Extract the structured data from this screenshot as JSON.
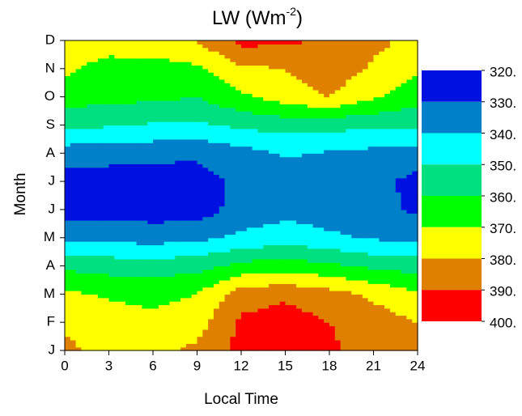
{
  "chart_data": {
    "type": "contour",
    "title": "LW (Wm",
    "title_superscript": "-2",
    "title_end": ")",
    "x_label": "Local Time",
    "y_label": "Month",
    "x": [
      0,
      3,
      6,
      9,
      12,
      15,
      18,
      21,
      24
    ],
    "xlim": [
      0,
      24
    ],
    "xticks": [
      0,
      3,
      6,
      9,
      12,
      15,
      18,
      21,
      24
    ],
    "categories": [
      "J",
      "F",
      "M",
      "A",
      "M",
      "J",
      "J",
      "A",
      "S",
      "O",
      "N",
      "D"
    ],
    "z": [
      [
        383,
        375,
        377,
        382,
        393,
        395,
        392,
        385,
        383
      ],
      [
        378,
        374,
        373,
        376,
        392,
        395,
        390,
        385,
        380
      ],
      [
        372,
        369,
        367,
        370,
        385,
        388,
        384,
        378,
        372
      ],
      [
        358,
        356,
        355,
        357,
        363,
        366,
        362,
        358,
        356
      ],
      [
        338,
        337,
        336,
        338,
        342,
        345,
        342,
        339,
        337
      ],
      [
        325,
        326,
        325,
        325,
        334,
        337,
        335,
        334,
        328
      ],
      [
        326,
        326,
        324,
        325,
        333,
        336,
        335,
        333,
        327
      ],
      [
        335,
        333,
        333,
        332,
        336,
        341,
        339,
        337,
        334
      ],
      [
        352,
        351,
        349,
        348,
        352,
        354,
        353,
        352,
        353
      ],
      [
        365,
        363,
        362,
        360,
        368,
        375,
        380,
        371,
        363
      ],
      [
        372,
        366,
        365,
        368,
        378,
        380,
        386,
        379,
        372
      ],
      [
        375,
        375,
        378,
        380,
        393,
        392,
        388,
        382,
        378
      ]
    ],
    "levels": [
      {
        "value": 320,
        "label": "320."
      },
      {
        "value": 330,
        "label": "330."
      },
      {
        "value": 340,
        "label": "340."
      },
      {
        "value": 350,
        "label": "350."
      },
      {
        "value": 360,
        "label": "360."
      },
      {
        "value": 370,
        "label": "370."
      },
      {
        "value": 380,
        "label": "380."
      },
      {
        "value": 390,
        "label": "390."
      },
      {
        "value": 400,
        "label": "400."
      }
    ],
    "colors": [
      "#0010e0",
      "#0080c8",
      "#00ffff",
      "#00e080",
      "#00ff00",
      "#ffff00",
      "#e08000",
      "#ff0000"
    ]
  }
}
